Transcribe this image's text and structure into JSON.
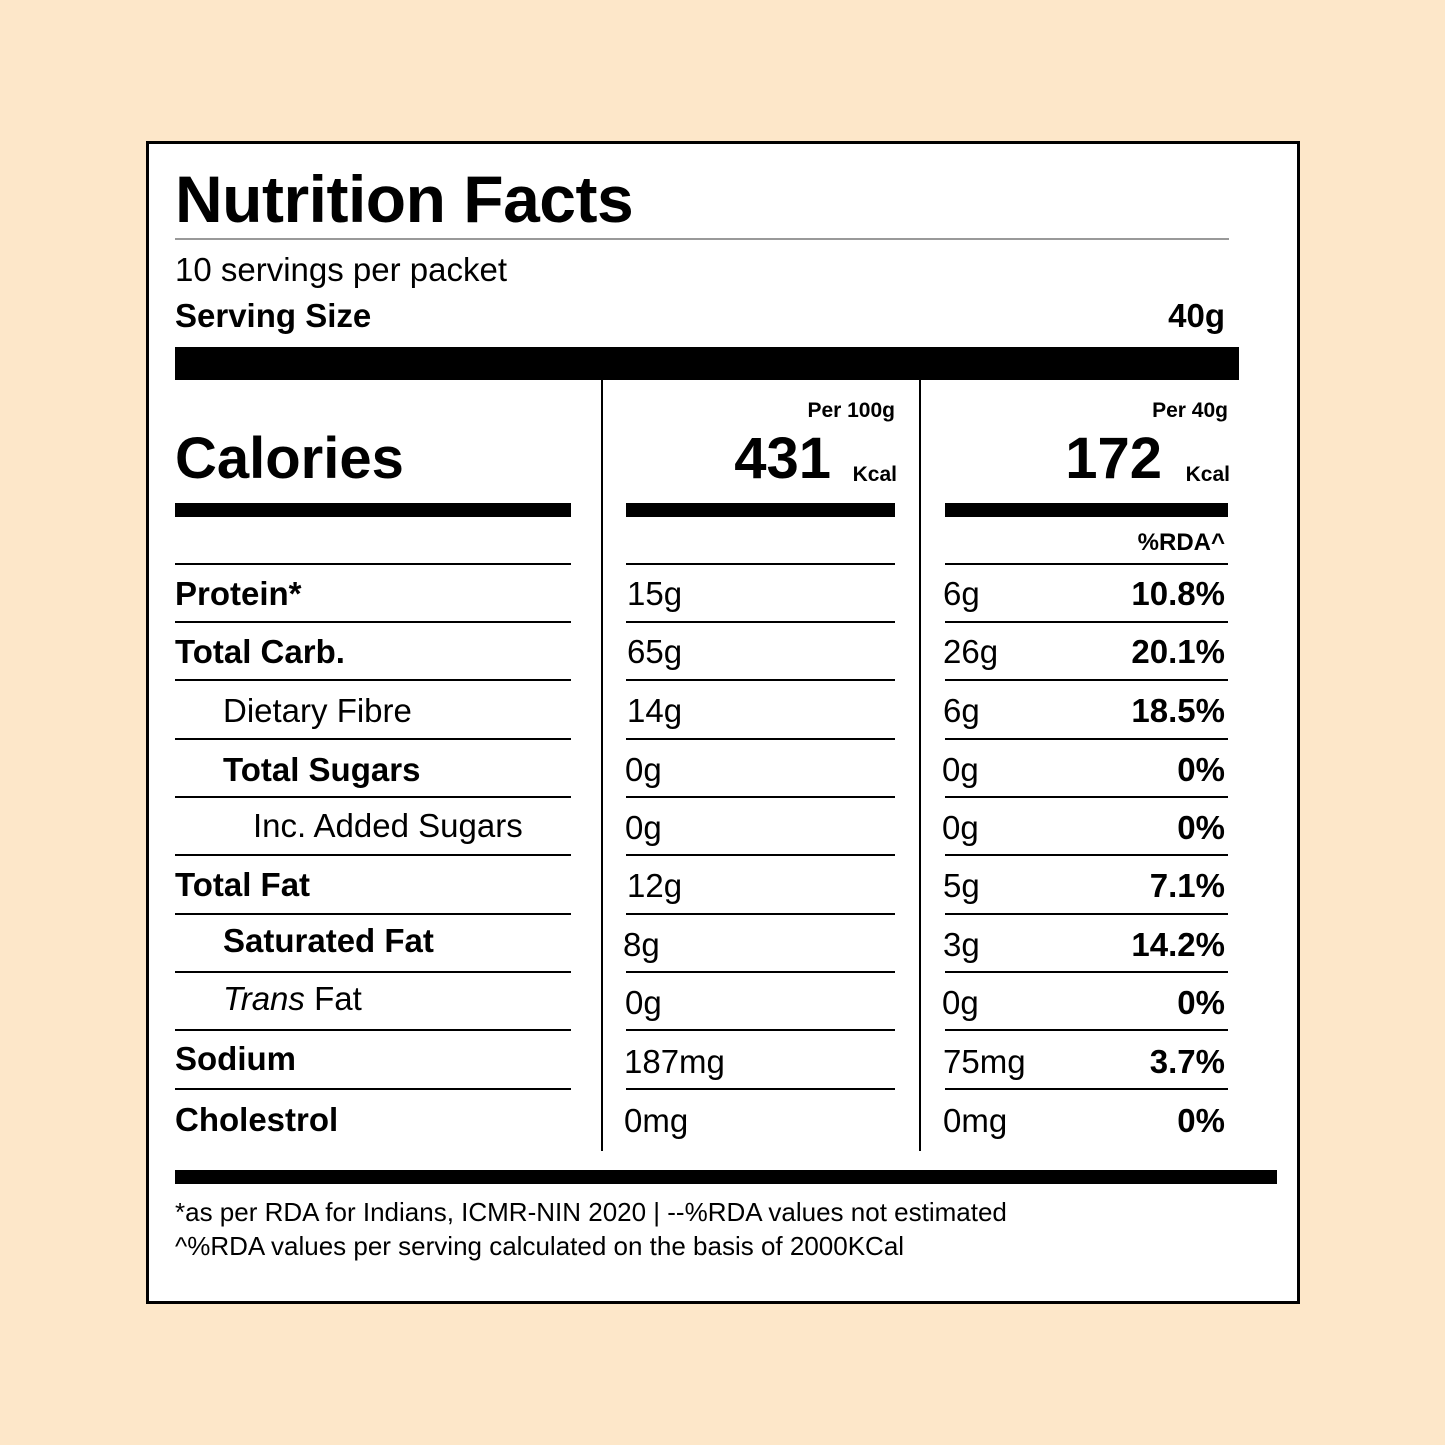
{
  "header": {
    "title": "Nutrition Facts",
    "servings": "10 servings per packet",
    "serving_size_label": "Serving Size",
    "serving_size_value": "40g"
  },
  "calories": {
    "label": "Calories",
    "per100_label": "Per 100g",
    "per100_value": "431",
    "per40_label": "Per 40g",
    "per40_value": "172",
    "unit": "Kcal",
    "rda_header": "%RDA^"
  },
  "rows": [
    {
      "name": "Protein*",
      "per100": "15g",
      "per40": "6g",
      "rda": "10.8%"
    },
    {
      "name": "Total Carb.",
      "per100": "65g",
      "per40": "26g",
      "rda": "20.1%"
    },
    {
      "name": "Dietary Fibre",
      "per100": "14g",
      "per40": "6g",
      "rda": "18.5%"
    },
    {
      "name": "Total Sugars",
      "per100": "0g",
      "per40": "0g",
      "rda": "0%"
    },
    {
      "name": "Inc. Added Sugars",
      "per100": "0g",
      "per40": "0g",
      "rda": "0%"
    },
    {
      "name": "Total Fat",
      "per100": "12g",
      "per40": "5g",
      "rda": "7.1%"
    },
    {
      "name": "Saturated Fat",
      "per100": "8g",
      "per40": "3g",
      "rda": "14.2%"
    },
    {
      "name_italic": "Trans",
      "name_rest": " Fat",
      "per100": "0g",
      "per40": "0g",
      "rda": "0%"
    },
    {
      "name": "Sodium",
      "per100": "187mg",
      "per40": "75mg",
      "rda": "3.7%"
    },
    {
      "name": "Cholestrol",
      "per100": "0mg",
      "per40": "0mg",
      "rda": "0%"
    }
  ],
  "footnotes": {
    "line1": "*as per RDA for Indians, ICMR-NIN 2020 | --%RDA values not estimated",
    "line2": "^%RDA values per serving calculated on the basis of 2000KCal"
  }
}
